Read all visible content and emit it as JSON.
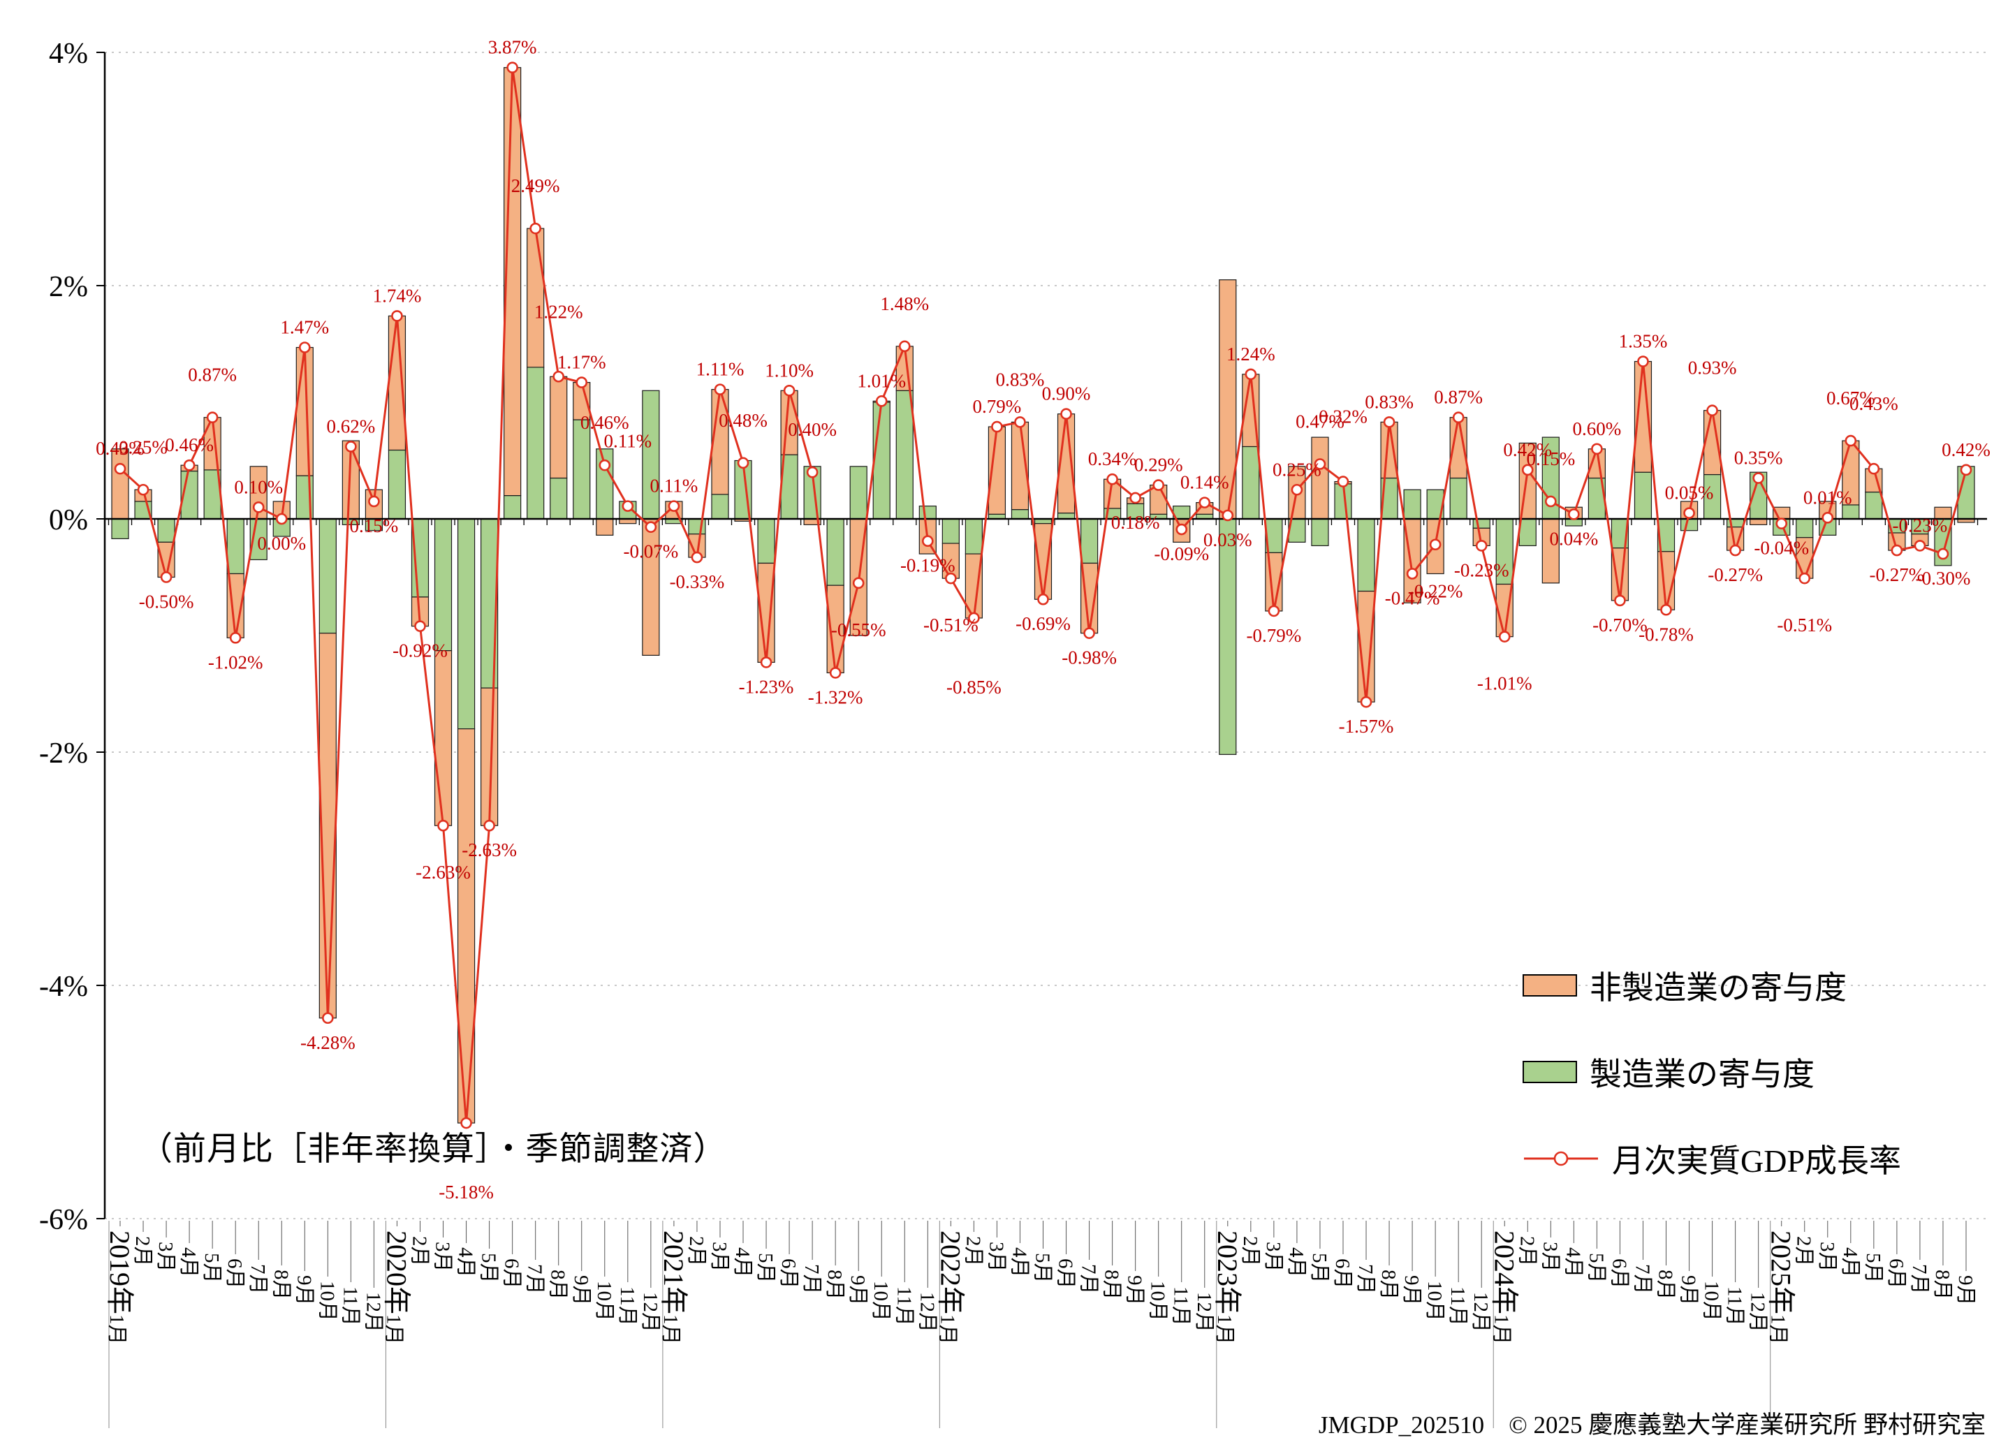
{
  "note": "（前月比［非年率換算］・季節調整済）",
  "footer": "JMGDP_202510　© 2025 慶應義塾大学産業研究所 野村研究室",
  "legend": {
    "nonmanufacturing": "非製造業の寄与度",
    "manufacturing": "製造業の寄与度",
    "gdp_line": "月次実質GDP成長率"
  },
  "colors": {
    "nonmanufacturing": "#F4B183",
    "manufacturing": "#A9D18E",
    "line": "#E0301E",
    "label": "#C00000",
    "axis": "#000000",
    "grid": "#B5B5B5"
  },
  "chart_data": {
    "type": "bar",
    "subtype": "stacked-bars-with-line",
    "unit": "%",
    "title": "",
    "xlabel": "",
    "ylabel": "",
    "ylim": [
      -6,
      4
    ],
    "y_ticks": [
      "4%",
      "2%",
      "0%",
      "-2%",
      "-4%",
      "-6%"
    ],
    "grid": true,
    "legend_position": "right-bottom",
    "stack_bottom": "製造業の寄与度",
    "categories": [
      "2019年1月",
      "2月",
      "3月",
      "4月",
      "5月",
      "6月",
      "7月",
      "8月",
      "9月",
      "10月",
      "11月",
      "12月",
      "2020年1月",
      "2月",
      "3月",
      "4月",
      "5月",
      "6月",
      "7月",
      "8月",
      "9月",
      "10月",
      "11月",
      "12月",
      "2021年1月",
      "2月",
      "3月",
      "4月",
      "5月",
      "6月",
      "7月",
      "8月",
      "9月",
      "10月",
      "11月",
      "12月",
      "2022年1月",
      "2月",
      "3月",
      "4月",
      "5月",
      "6月",
      "7月",
      "8月",
      "9月",
      "10月",
      "11月",
      "12月",
      "2023年1月",
      "2月",
      "3月",
      "4月",
      "5月",
      "6月",
      "7月",
      "8月",
      "9月",
      "10月",
      "11月",
      "12月",
      "2024年1月",
      "2月",
      "3月",
      "4月",
      "5月",
      "6月",
      "7月",
      "8月",
      "9月",
      "10月",
      "11月",
      "12月",
      "2025年1月",
      "2月",
      "3月",
      "4月",
      "5月",
      "6月",
      "7月",
      "8月",
      "9月"
    ],
    "series": [
      {
        "name": "非製造業の寄与度",
        "type": "bar",
        "color_key": "nonmanufacturing",
        "values": [
          0.6,
          0.1,
          -0.3,
          0.05,
          0.45,
          -0.55,
          0.45,
          0.15,
          1.1,
          -3.3,
          0.67,
          0.25,
          1.15,
          -0.25,
          -1.5,
          -3.38,
          -1.18,
          3.67,
          1.19,
          0.87,
          0.32,
          -0.14,
          -0.04,
          -1.17,
          0.15,
          -0.2,
          0.9,
          -0.02,
          -0.85,
          0.55,
          -0.05,
          -0.75,
          -1.0,
          0.01,
          0.38,
          -0.3,
          -0.3,
          -0.55,
          0.75,
          0.75,
          -0.65,
          0.85,
          -0.6,
          0.25,
          0.05,
          0.25,
          -0.2,
          0.1,
          2.05,
          0.62,
          -0.5,
          0.45,
          0.7,
          0.02,
          -0.95,
          0.48,
          -0.72,
          -0.47,
          0.52,
          -0.15,
          -0.45,
          0.65,
          -0.55,
          0.1,
          0.25,
          -0.45,
          0.95,
          -0.5,
          0.15,
          0.55,
          -0.2,
          -0.05,
          0.1,
          -0.35,
          0.15,
          0.55,
          0.2,
          -0.15,
          -0.1,
          0.1,
          -0.03
        ]
      },
      {
        "name": "製造業の寄与度",
        "type": "bar",
        "color_key": "manufacturing",
        "values": [
          -0.17,
          0.15,
          -0.2,
          0.41,
          0.42,
          -0.47,
          -0.35,
          -0.15,
          0.37,
          -0.98,
          -0.05,
          -0.1,
          0.59,
          -0.67,
          -1.13,
          -1.8,
          -1.45,
          0.2,
          1.3,
          0.35,
          0.85,
          0.6,
          0.15,
          1.1,
          -0.04,
          -0.13,
          0.21,
          0.5,
          -0.38,
          0.55,
          0.45,
          -0.57,
          0.45,
          1.0,
          1.1,
          0.11,
          -0.21,
          -0.3,
          0.04,
          0.08,
          -0.04,
          0.05,
          -0.38,
          0.09,
          0.13,
          0.04,
          0.11,
          0.04,
          -2.02,
          0.62,
          -0.29,
          -0.2,
          -0.23,
          0.3,
          -0.62,
          0.35,
          0.25,
          0.25,
          0.35,
          -0.08,
          -0.56,
          -0.23,
          0.7,
          -0.06,
          0.35,
          -0.25,
          0.4,
          -0.28,
          -0.1,
          0.38,
          -0.07,
          0.4,
          -0.14,
          -0.16,
          -0.14,
          0.12,
          0.23,
          -0.12,
          -0.13,
          -0.4,
          0.45
        ]
      },
      {
        "name": "月次実質GDP成長率",
        "type": "line",
        "color_key": "line",
        "values": [
          0.43,
          0.25,
          -0.5,
          0.46,
          0.87,
          -1.02,
          0.1,
          0.0,
          1.47,
          -4.28,
          0.62,
          0.15,
          1.74,
          -0.92,
          -2.63,
          -5.18,
          -2.63,
          3.87,
          2.49,
          1.22,
          1.17,
          0.46,
          0.11,
          -0.07,
          0.11,
          -0.33,
          1.11,
          0.48,
          -1.23,
          1.1,
          0.4,
          -1.32,
          -0.55,
          1.01,
          1.48,
          -0.19,
          -0.51,
          -0.85,
          0.79,
          0.83,
          -0.69,
          0.9,
          -0.98,
          0.34,
          0.18,
          0.29,
          -0.09,
          0.14,
          0.03,
          1.24,
          -0.79,
          0.25,
          0.47,
          0.32,
          -1.57,
          0.83,
          -0.47,
          -0.22,
          0.87,
          -0.23,
          -1.01,
          0.42,
          0.15,
          0.04,
          0.6,
          -0.7,
          1.35,
          -0.78,
          0.05,
          0.93,
          -0.27,
          0.35,
          -0.04,
          -0.51,
          0.01,
          0.67,
          0.43,
          -0.27,
          -0.23,
          -0.3,
          0.42
        ]
      }
    ]
  }
}
